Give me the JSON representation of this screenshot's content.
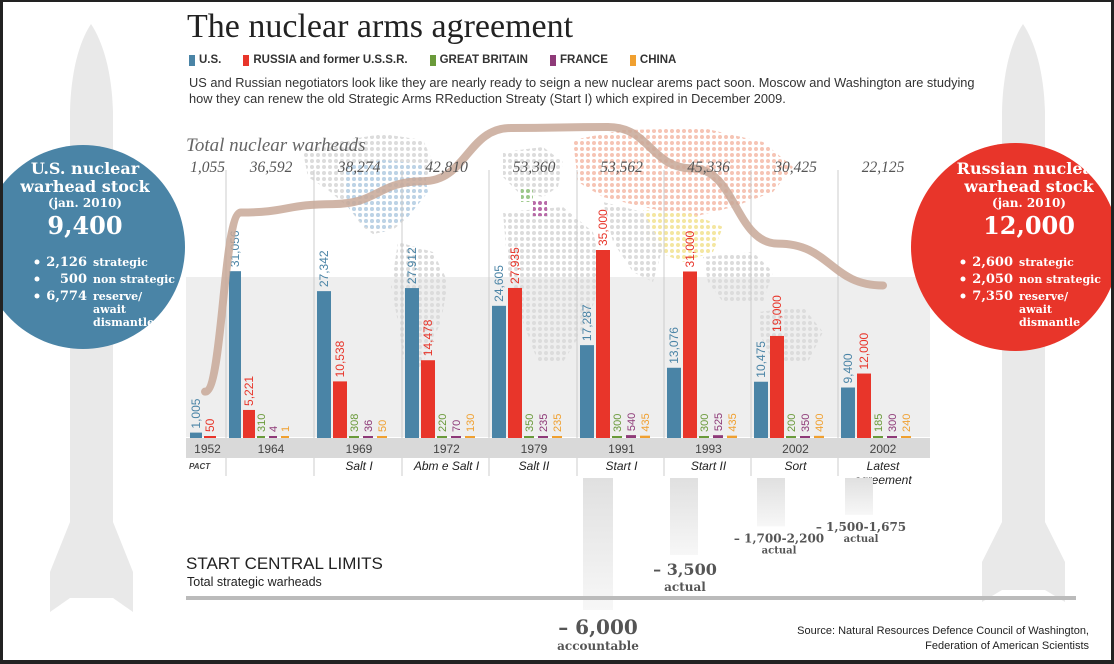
{
  "title": "The nuclear arms agreement",
  "subtitle": "US and Russian negotiators look like they are nearly ready to seign a new nuclear arems pact soon. Moscow and Washington are studying how they can renew the old Strategic Arms RReduction Streaty (Start I) which expired in December 2009.",
  "legend": [
    {
      "label": "U.S.",
      "color": "#4a84a6"
    },
    {
      "label": "RUSSIA and former U.S.S.R.",
      "color": "#e8352a"
    },
    {
      "label": "GREAT BRITAIN",
      "color": "#6a9a3a"
    },
    {
      "label": "FRANCE",
      "color": "#8e3a78"
    },
    {
      "label": "CHINA",
      "color": "#f0a030"
    }
  ],
  "us_stock": {
    "title_line1": "U.S. nuclear",
    "title_line2": "warhead stock",
    "date": "(jan. 2010)",
    "total": "9,400",
    "rows": [
      {
        "value": "2,126",
        "label": "strategic"
      },
      {
        "value": "500",
        "label": "non strategic"
      },
      {
        "value": "6,774",
        "label": "reserve/"
      }
    ],
    "extra_lines": [
      "await",
      "dismantle"
    ],
    "color": "#4a84a6"
  },
  "russia_stock": {
    "title_line1": "Russian nuclear",
    "title_line2": "warhead stock",
    "date": "(jan. 2010)",
    "total": "12,000",
    "rows": [
      {
        "value": "2,600",
        "label": "strategic"
      },
      {
        "value": "2,050",
        "label": "non strategic"
      },
      {
        "value": "7,350",
        "label": "reserve/"
      }
    ],
    "extra_lines": [
      "await",
      "dismantle"
    ],
    "color": "#e8352a"
  },
  "chart_data": {
    "type": "bar",
    "total_label": "Total nuclear warheads",
    "categories": [
      "1952",
      "1964",
      "1969",
      "1972",
      "1979",
      "1991",
      "1993",
      "2002",
      "2002"
    ],
    "pacts": [
      "PACT",
      "",
      "Salt I",
      "Abm e Salt I",
      "Salt II",
      "Start I",
      "Start II",
      "Sort",
      "Latest agreement"
    ],
    "totals": [
      "1,055",
      "36,592",
      "38,274",
      "42,810",
      "53,360",
      "53,562",
      "45,336",
      "30,425",
      "22,125"
    ],
    "totals_values": [
      1055,
      36592,
      38274,
      42810,
      53360,
      53562,
      45336,
      30425,
      22125
    ],
    "series": [
      {
        "name": "U.S.",
        "values": [
          1005,
          31056,
          27342,
          27912,
          24605,
          17287,
          13076,
          10475,
          9400
        ]
      },
      {
        "name": "RUSSIA and former U.S.S.R.",
        "values": [
          50,
          5221,
          10538,
          14478,
          27935,
          35000,
          31000,
          19000,
          12000
        ]
      },
      {
        "name": "GREAT BRITAIN",
        "values": [
          0,
          310,
          308,
          220,
          350,
          300,
          300,
          200,
          185
        ]
      },
      {
        "name": "FRANCE",
        "values": [
          0,
          4,
          36,
          70,
          235,
          540,
          525,
          350,
          300
        ]
      },
      {
        "name": "CHINA",
        "values": [
          0,
          1,
          50,
          130,
          235,
          435,
          435,
          400,
          240
        ]
      }
    ],
    "bar_labels": [
      [
        "1,005",
        "50",
        "",
        "",
        ""
      ],
      [
        "31,056",
        "5,221",
        "310",
        "4",
        "1"
      ],
      [
        "27,342",
        "10,538",
        "308",
        "36",
        "50"
      ],
      [
        "27,912",
        "14,478",
        "220",
        "70",
        "130"
      ],
      [
        "24,605",
        "27,935",
        "350",
        "235",
        "235"
      ],
      [
        "17,287",
        "35,000",
        "300",
        "540",
        "435"
      ],
      [
        "13,076",
        "31,000",
        "300",
        "525",
        "435"
      ],
      [
        "10,475",
        "19,000",
        "200",
        "350",
        "400"
      ],
      [
        "9,400",
        "12,000",
        "185",
        "300",
        "240"
      ]
    ],
    "ylim": [
      0,
      35000
    ]
  },
  "start_limits": {
    "title": "START CENTRAL LIMITS",
    "subtitle": "Total strategic warheads",
    "items": [
      {
        "pact": "Start I",
        "value": "– 6,000",
        "note": "accountable",
        "amount": 6000
      },
      {
        "pact": "Start II",
        "value": "– 3,500",
        "note": "actual",
        "amount": 3500
      },
      {
        "pact": "Sort",
        "value": "– 1,700-2,200",
        "note": "actual",
        "amount": 2200
      },
      {
        "pact": "Latest agreement",
        "value": "– 1,500-1,675",
        "note": "actual",
        "amount": 1675
      }
    ]
  },
  "source": {
    "line1": "Source: Natural Resources Defence Council of Washington,",
    "line2": "Federation of American Scientists"
  }
}
